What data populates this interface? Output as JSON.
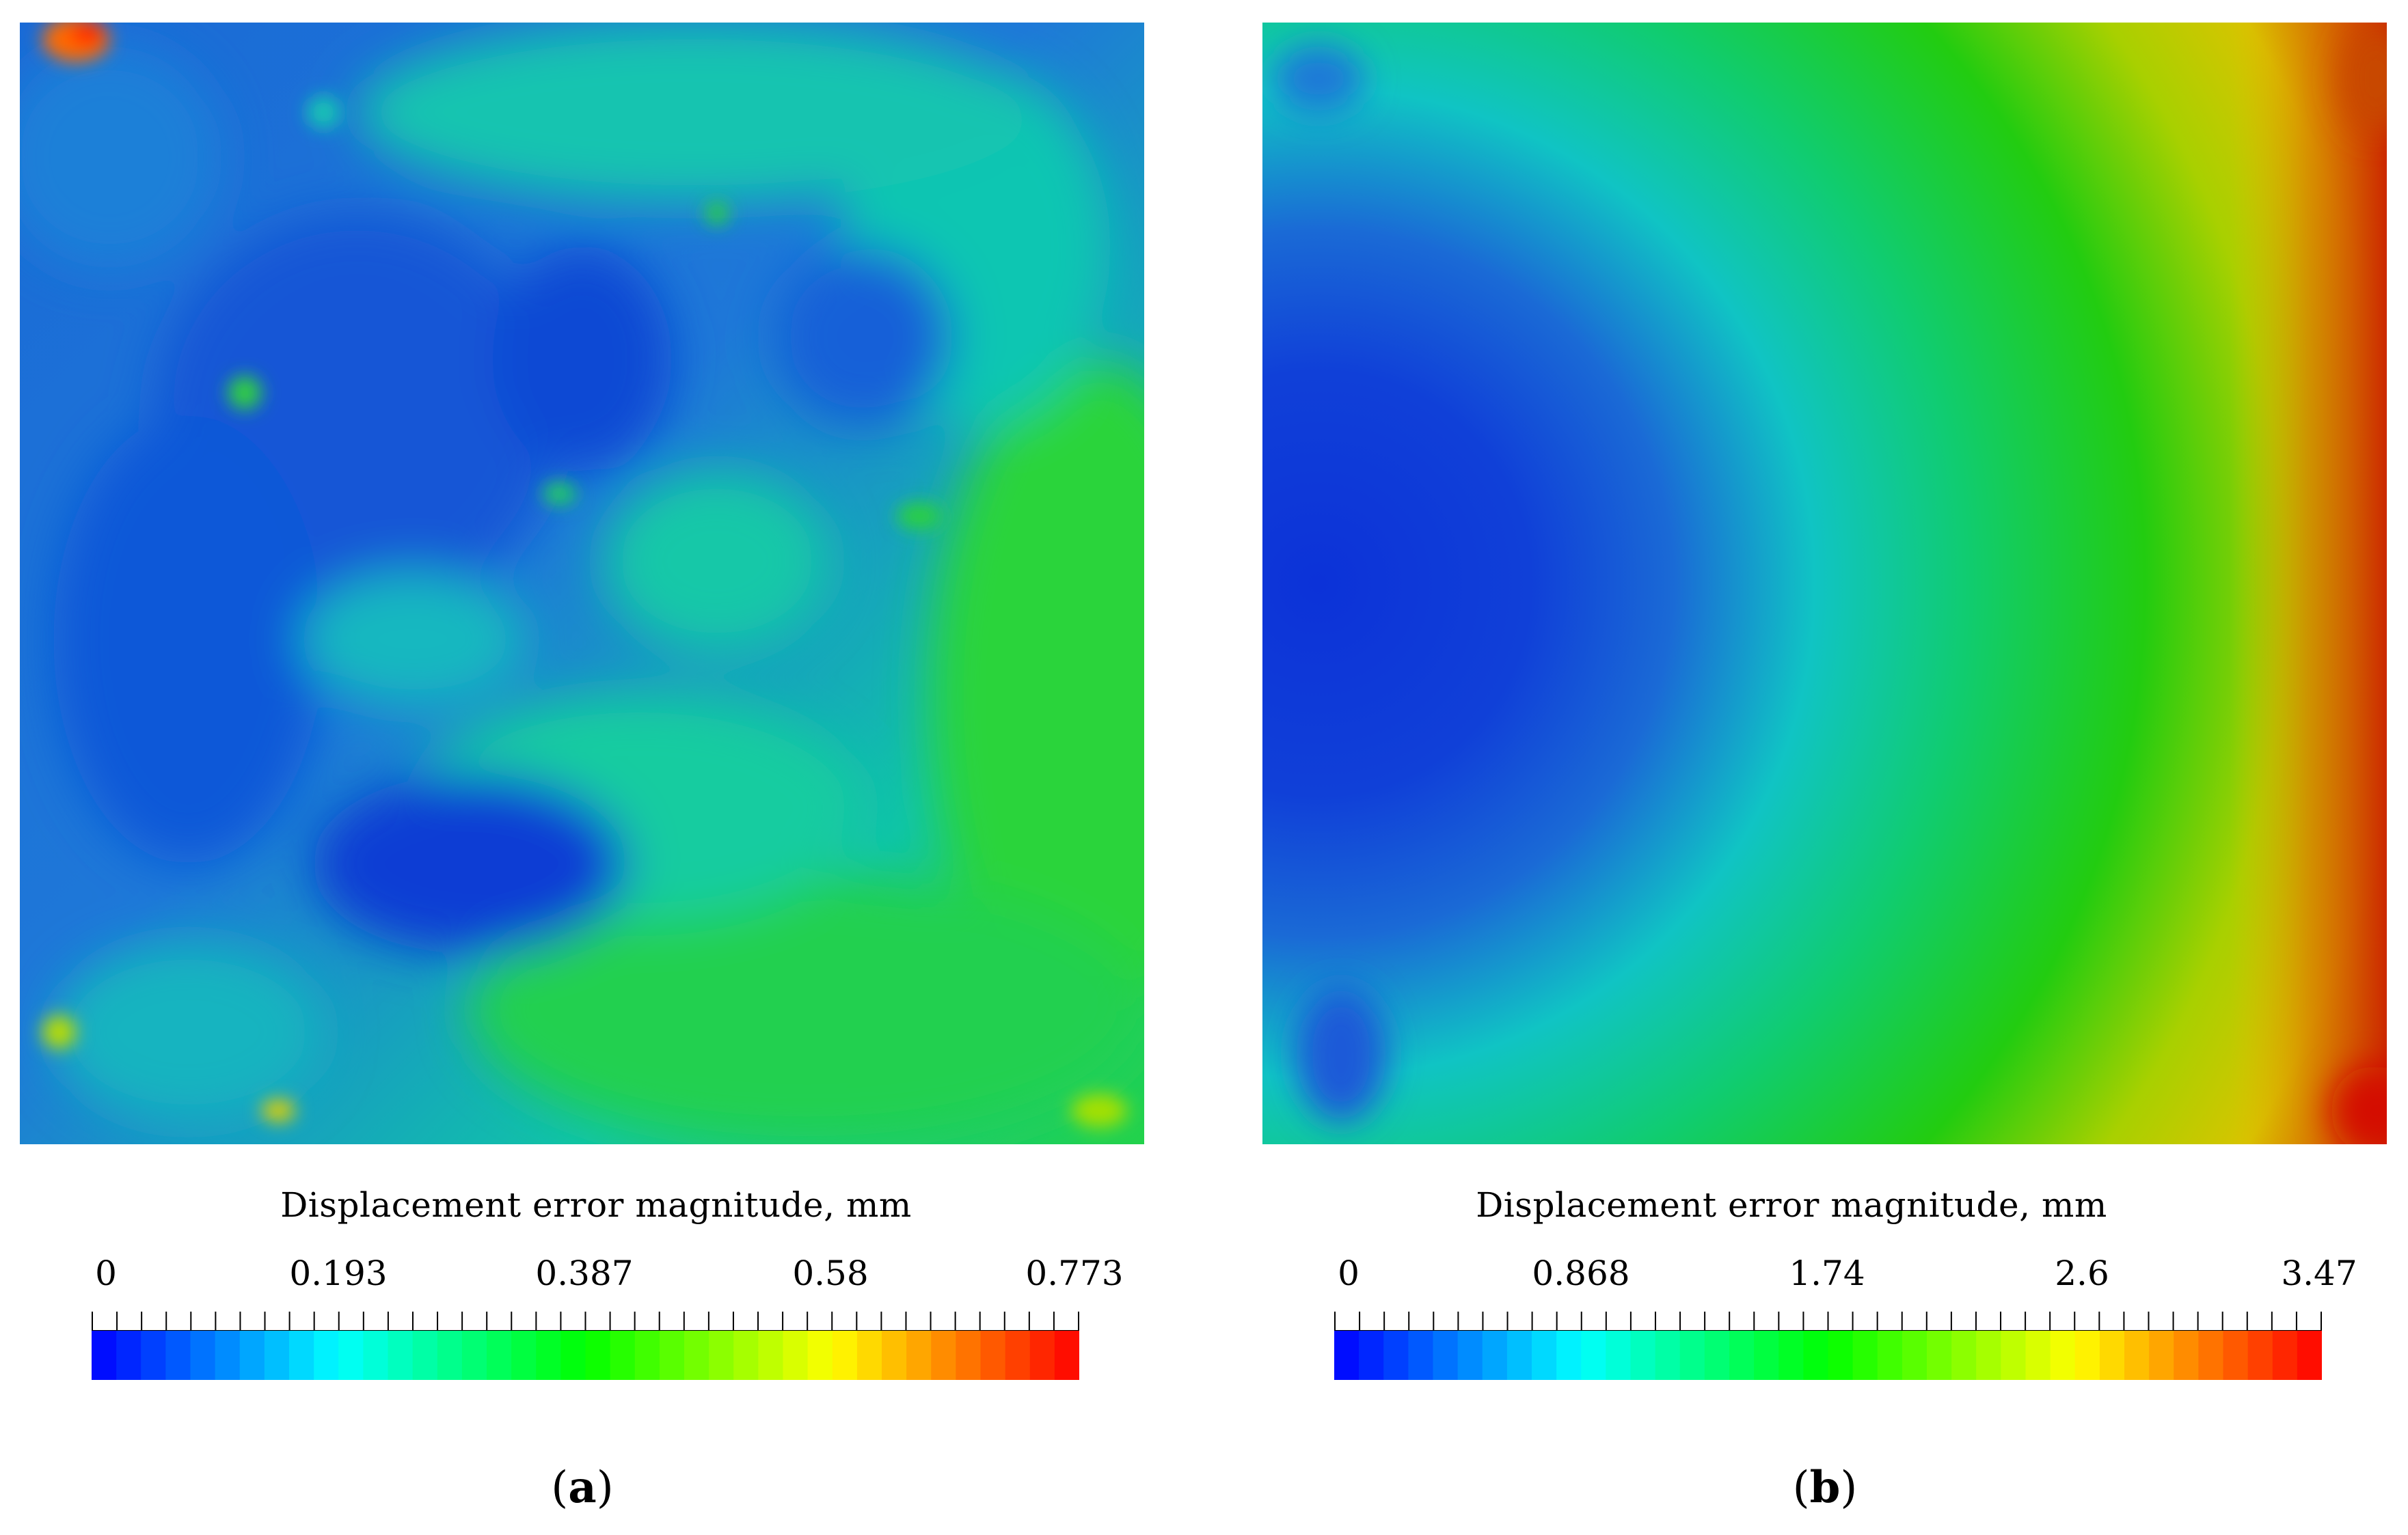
{
  "panels": [
    {
      "label_open": "(",
      "label_letter": "a",
      "label_close": ")",
      "colorbar": {
        "title": "Displacement error magnitude, mm",
        "ticks": [
          "0",
          "0.193",
          "0.387",
          "0.58",
          "0.773"
        ],
        "range": [
          0,
          0.773
        ]
      }
    },
    {
      "label_open": "(",
      "label_letter": "b",
      "label_close": ")",
      "colorbar": {
        "title": "Displacement error magnitude, mm",
        "ticks": [
          "0",
          "0.868",
          "1.74",
          "2.6",
          "3.47"
        ],
        "range": [
          0,
          3.47
        ]
      }
    }
  ],
  "colormap": [
    "#0000ff",
    "#00ffff",
    "#00ff00",
    "#ffff00",
    "#ff0000"
  ]
}
